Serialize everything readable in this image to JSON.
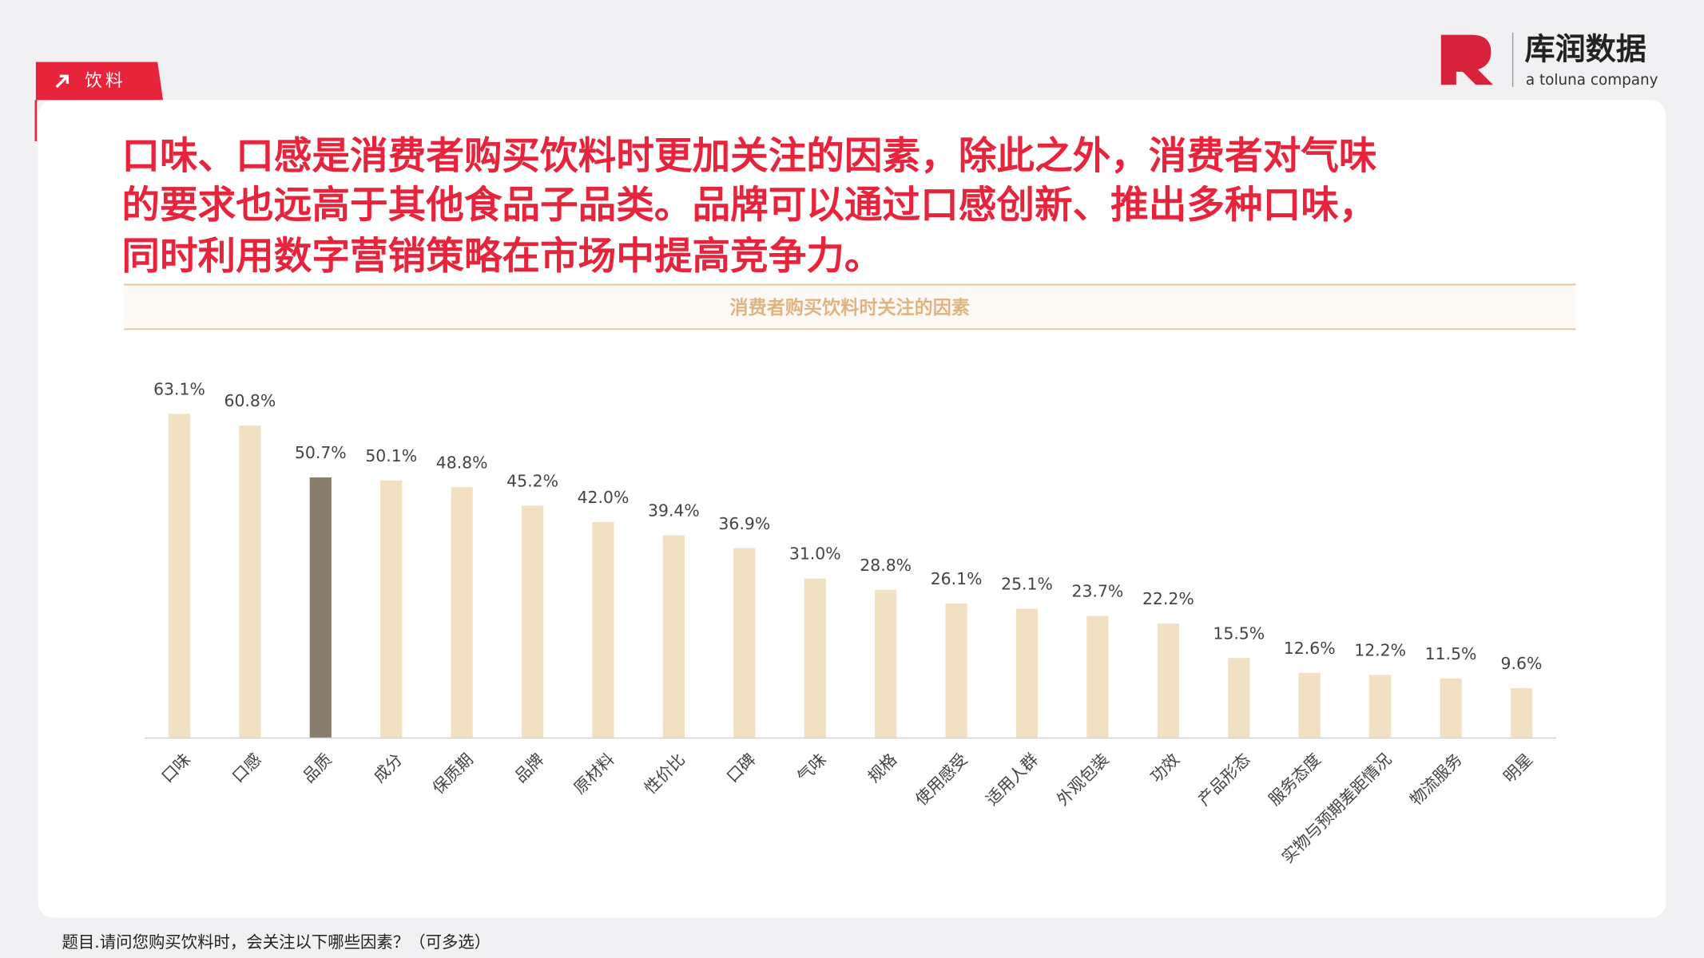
{
  "header": {
    "tag": "饮料",
    "headline": [
      "口味、口感是消费者购买饮料时更加关注的因素，除此之外，消费者对气味",
      "的要求也远高于其他食品子品类。品牌可以通过口感创新、推出多种口味，",
      "同时利用数字营销策略在市场中提高竞争力。"
    ]
  },
  "logo": {
    "name": "库润数据",
    "tagline": "a toluna company"
  },
  "footnote": "题目.请问您购买饮料时，会关注以下哪些因素？（可多选）",
  "chart_data": {
    "type": "bar",
    "title": "消费者购买饮料时关注的因素",
    "categories": [
      "口味",
      "口感",
      "品质",
      "成分",
      "保质期",
      "品牌",
      "原材料",
      "性价比",
      "口碑",
      "气味",
      "规格",
      "使用感受",
      "适用人群",
      "外观包装",
      "功效",
      "产品形态",
      "服务态度",
      "实物与预期差距情况",
      "物流服务",
      "明星"
    ],
    "values": [
      63.1,
      60.8,
      50.7,
      50.1,
      48.8,
      45.2,
      42.0,
      39.4,
      36.9,
      31.0,
      28.8,
      26.1,
      25.1,
      23.7,
      22.2,
      15.5,
      12.6,
      12.2,
      11.5,
      9.6
    ],
    "value_labels": [
      "63.1%",
      "60.8%",
      "50.7%",
      "50.1%",
      "48.8%",
      "45.2%",
      "42.0%",
      "39.4%",
      "36.9%",
      "31.0%",
      "28.8%",
      "26.1%",
      "25.1%",
      "23.7%",
      "22.2%",
      "15.5%",
      "12.6%",
      "12.2%",
      "11.5%",
      "9.6%"
    ],
    "colors": [
      "#f2e0c2",
      "#f2e0c2",
      "#8b7d6b",
      "#f2e0c2",
      "#f2e0c2",
      "#f2e0c2",
      "#f2e0c2",
      "#f2e0c2",
      "#f2e0c2",
      "#f2e0c2",
      "#f2e0c2",
      "#f2e0c2",
      "#f2e0c2",
      "#f2e0c2",
      "#f2e0c2",
      "#f2e0c2",
      "#f2e0c2",
      "#f2e0c2",
      "#f2e0c2",
      "#f2e0c2"
    ]
  }
}
